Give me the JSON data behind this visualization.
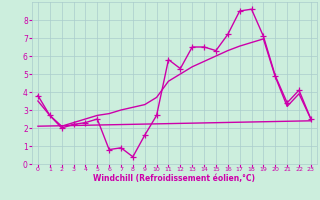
{
  "xlabel": "Windchill (Refroidissement éolien,°C)",
  "bg_color": "#cceedd",
  "grid_color": "#aacccc",
  "line_color": "#cc00aa",
  "xlim": [
    -0.5,
    23.5
  ],
  "ylim": [
    0,
    9
  ],
  "xticks": [
    0,
    1,
    2,
    3,
    4,
    5,
    6,
    7,
    8,
    9,
    10,
    11,
    12,
    13,
    14,
    15,
    16,
    17,
    18,
    19,
    20,
    21,
    22,
    23
  ],
  "yticks": [
    0,
    1,
    2,
    3,
    4,
    5,
    6,
    7,
    8
  ],
  "line1_x": [
    0,
    1,
    2,
    3,
    4,
    5,
    6,
    7,
    8,
    9,
    10,
    11,
    12,
    13,
    14,
    15,
    16,
    17,
    18,
    19,
    20,
    21,
    22,
    23
  ],
  "line1_y": [
    3.8,
    2.7,
    2.0,
    2.2,
    2.3,
    2.5,
    0.8,
    0.9,
    0.4,
    1.6,
    2.7,
    5.8,
    5.3,
    6.5,
    6.5,
    6.3,
    7.2,
    8.5,
    8.6,
    7.1,
    4.9,
    3.4,
    4.1,
    2.5
  ],
  "line2_x": [
    0,
    1,
    2,
    3,
    4,
    5,
    6,
    7,
    8,
    9,
    10,
    11,
    12,
    13,
    14,
    15,
    16,
    17,
    18,
    19,
    20,
    21,
    22,
    23
  ],
  "line2_y": [
    3.5,
    2.7,
    2.1,
    2.3,
    2.5,
    2.7,
    2.8,
    3.0,
    3.15,
    3.3,
    3.7,
    4.6,
    5.0,
    5.4,
    5.7,
    6.0,
    6.3,
    6.55,
    6.75,
    6.95,
    4.85,
    3.2,
    3.9,
    2.5
  ],
  "line3_x": [
    0,
    23
  ],
  "line3_y": [
    2.1,
    2.4
  ],
  "marker_size": 4,
  "line_width": 1.0
}
